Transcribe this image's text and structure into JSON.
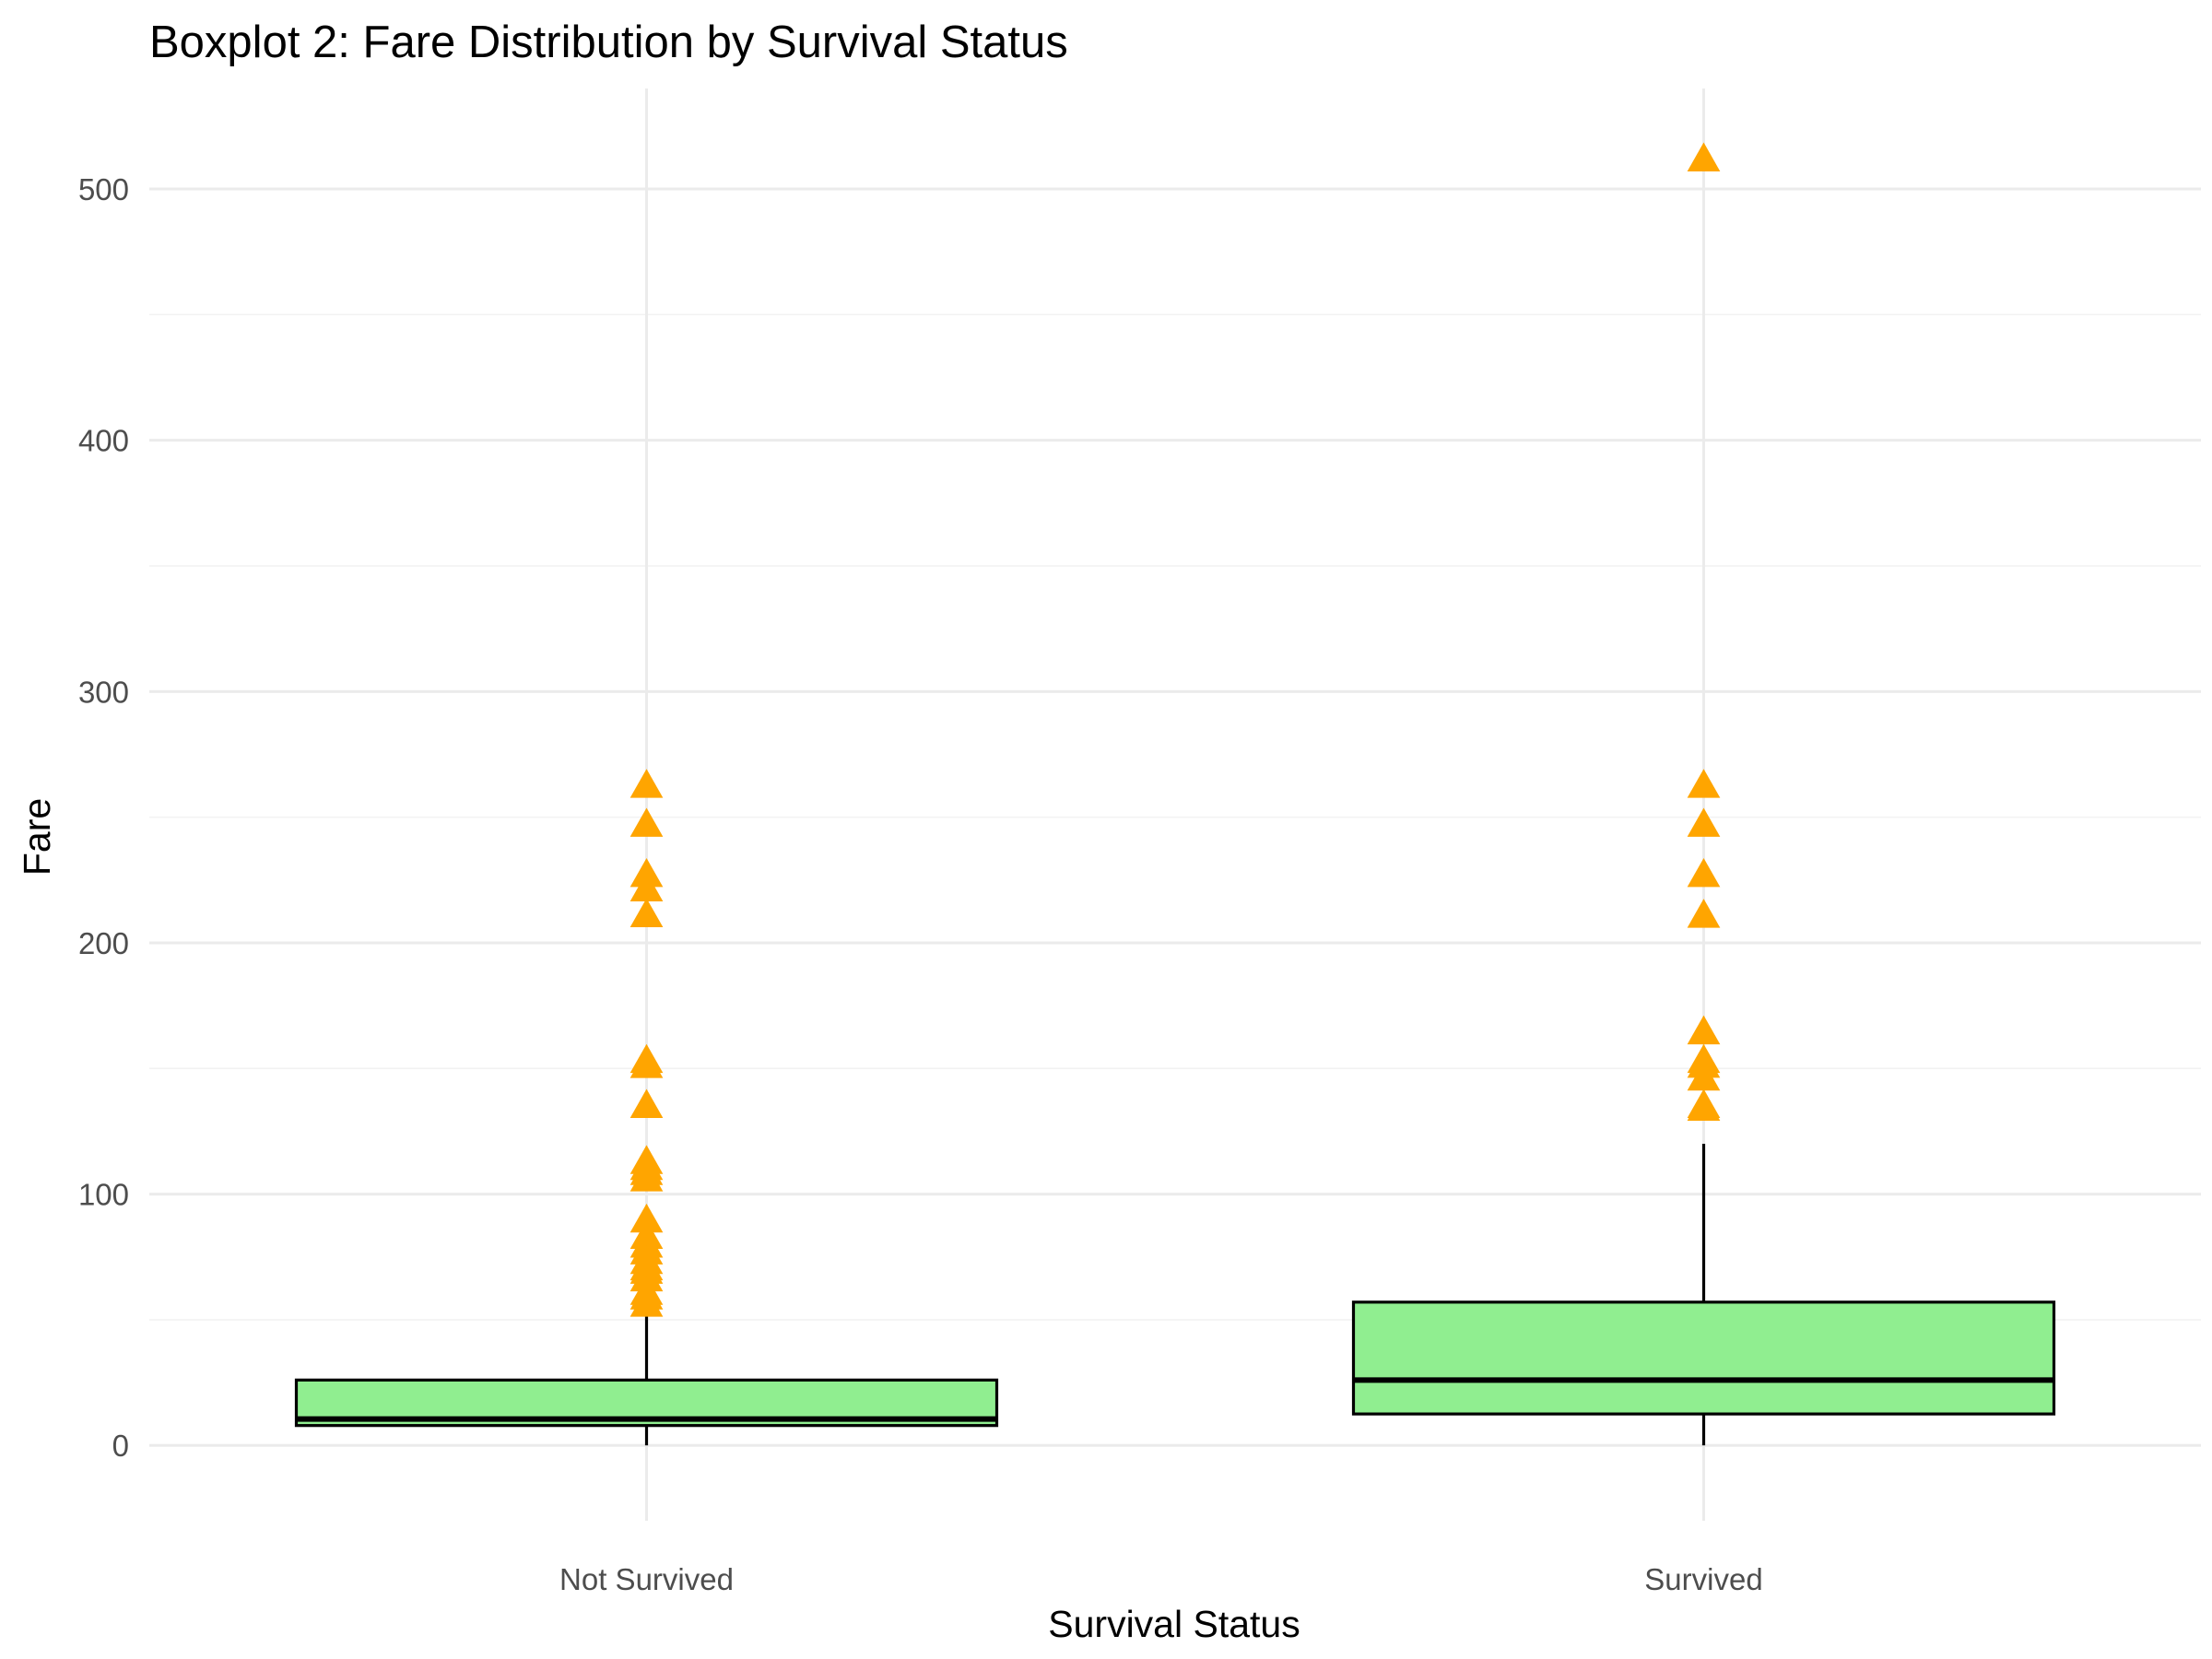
{
  "chart_data": {
    "type": "boxplot",
    "title": "Boxplot 2: Fare Distribution by Survival Status",
    "xlabel": "Survival Status",
    "ylabel": "Fare",
    "categories": [
      "Not Survived",
      "Survived"
    ],
    "ylim": [
      -30,
      540
    ],
    "y_ticks": [
      0,
      100,
      200,
      300,
      400,
      500
    ],
    "y_tick_labels": [
      "0",
      "100",
      "200",
      "300",
      "400",
      "500"
    ],
    "grid": true,
    "legend": "none",
    "colors": {
      "box_fill": "#90EE90",
      "box_stroke": "#000000",
      "outlier": "#FFA500",
      "grid_major": "#EBEBEB",
      "grid_minor": "#F2F2F2"
    },
    "boxes": [
      {
        "category": "Not Survived",
        "whisker_low": 0,
        "q1": 7.9,
        "median": 10.5,
        "q3": 26,
        "whisker_high": 52,
        "outliers": [
          263,
          247.5,
          227.5,
          221.8,
          211.5,
          153.5,
          151.5,
          135.6,
          113.3,
          110.9,
          108.9,
          106.4,
          90,
          83.5,
          80,
          77.3,
          73.5,
          71,
          69.6,
          66.6,
          61.2,
          59.4,
          56.5
        ]
      },
      {
        "category": "Survived",
        "whisker_low": 0,
        "q1": 12.5,
        "median": 26,
        "q3": 57,
        "whisker_high": 120,
        "outliers": [
          512.3,
          263,
          247.5,
          227.5,
          211.3,
          164.9,
          153.5,
          151.6,
          146.5,
          135.6,
          134.5
        ]
      }
    ]
  }
}
